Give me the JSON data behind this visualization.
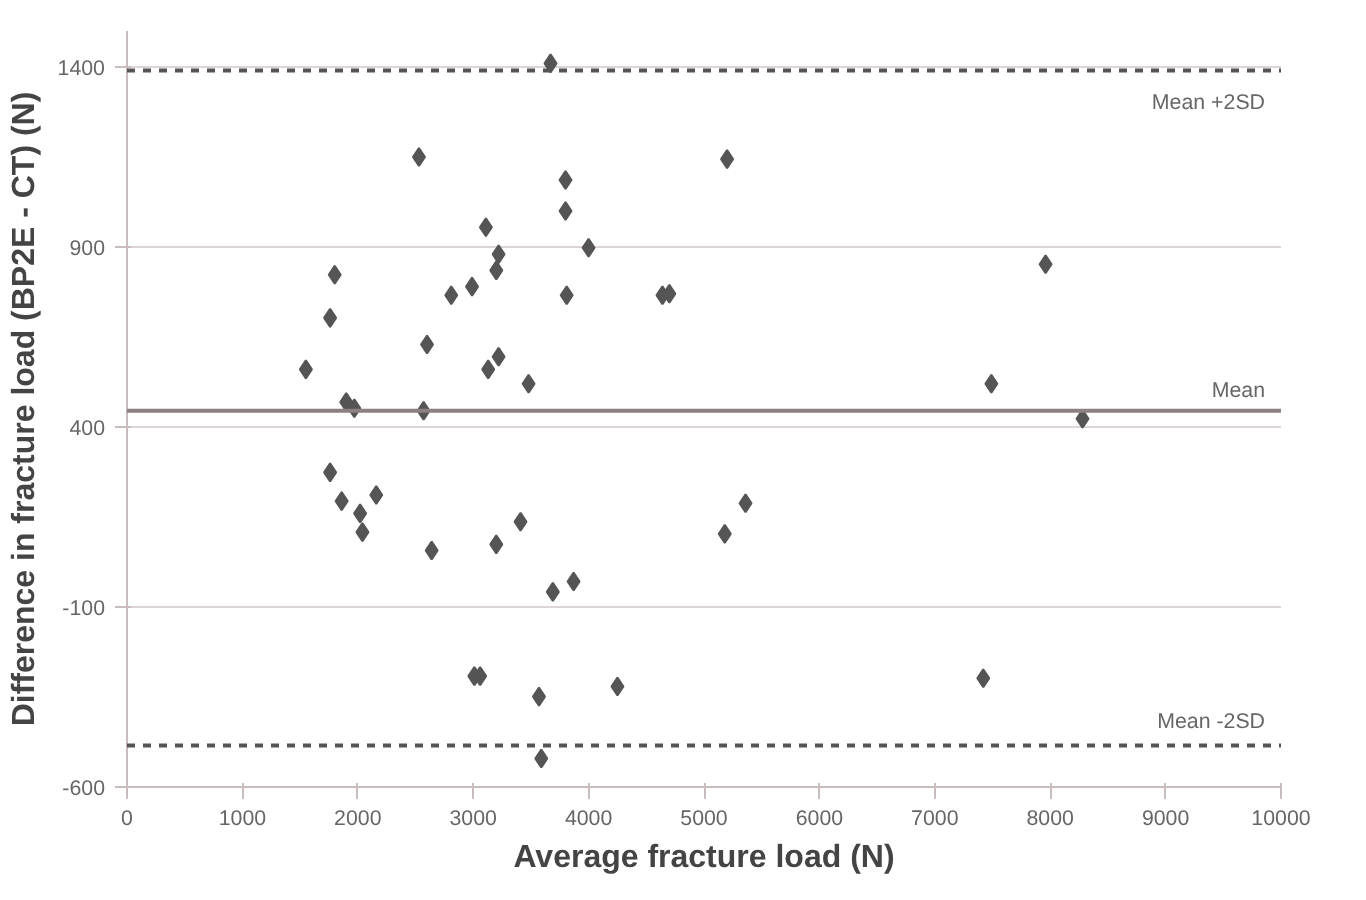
{
  "chart_data": {
    "type": "scatter",
    "xlabel": "Average fracture load (N)",
    "ylabel": "Difference in fracture load (BP2E - CT) (N)",
    "xlim": [
      0,
      10000
    ],
    "ylim": [
      -600,
      1500
    ],
    "xticks": [
      0,
      1000,
      2000,
      3000,
      4000,
      5000,
      6000,
      7000,
      8000,
      9000,
      10000
    ],
    "yticks": [
      -600,
      -100,
      400,
      900,
      1400
    ],
    "grid": "y",
    "marker": "diamond",
    "series": [
      {
        "color": "#555555",
        "x": [
          3670,
          2530,
          3800,
          3800,
          3110,
          3220,
          3200,
          4000,
          1800,
          1760,
          2810,
          2990,
          3810,
          4640,
          4700,
          2600,
          1550,
          3220,
          3130,
          3480,
          1900,
          1970,
          2570,
          1760,
          1860,
          2020,
          2040,
          2160,
          2640,
          3200,
          3410,
          3690,
          3870,
          3010,
          3060,
          3570,
          4250,
          3590,
          5200,
          7960,
          7490,
          8280,
          5360,
          5180,
          7420
        ],
        "values": [
          1410,
          1150,
          1086,
          1000,
          955,
          880,
          835,
          898,
          823,
          703,
          766,
          790,
          766,
          766,
          770,
          629,
          560,
          595,
          560,
          520,
          469,
          452,
          445,
          274,
          194,
          160,
          108,
          211,
          57,
          74,
          137,
          -58,
          -29,
          -292,
          -292,
          -349,
          -321,
          -521,
          1144,
          852,
          520,
          423,
          188,
          103,
          -298
        ]
      }
    ],
    "ref_lines": [
      {
        "axis": "y",
        "value": 1390,
        "label": "Mean +2SD",
        "line_style": "dashed",
        "color": "#555555"
      },
      {
        "axis": "y",
        "value": 445,
        "label": "Mean",
        "line_style": "solid",
        "color": "#8c8080"
      },
      {
        "axis": "y",
        "value": -485,
        "label": "Mean -2SD",
        "line_style": "dashed",
        "color": "#555555"
      }
    ]
  }
}
